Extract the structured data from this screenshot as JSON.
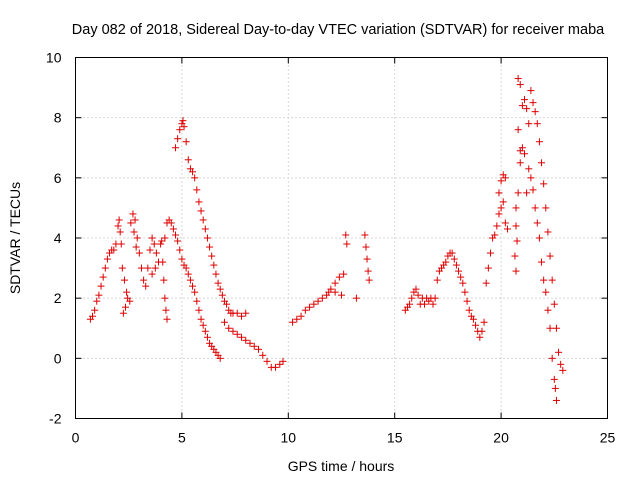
{
  "chart_data": {
    "type": "scatter",
    "title": "Day 082 of 2018, Sidereal Day-to-day VTEC variation (SDTVAR) for receiver maba",
    "xlabel": "GPS time / hours",
    "ylabel": "SDTVAR / TECUs",
    "xlim": [
      0,
      25
    ],
    "ylim": [
      -2,
      10
    ],
    "xticks": [
      "0",
      "5",
      "10",
      "15",
      "20",
      "25"
    ],
    "yticks": [
      "-2",
      "0",
      "2",
      "4",
      "6",
      "8",
      "10"
    ],
    "grid": true,
    "marker": "+",
    "series": [
      {
        "name": "SDTVAR",
        "color": "#dd0000",
        "points": [
          [
            0.7,
            1.3
          ],
          [
            0.8,
            1.4
          ],
          [
            0.9,
            1.6
          ],
          [
            1.0,
            1.9
          ],
          [
            1.1,
            2.1
          ],
          [
            1.2,
            2.4
          ],
          [
            1.3,
            2.7
          ],
          [
            1.4,
            3.0
          ],
          [
            1.5,
            3.3
          ],
          [
            1.6,
            3.5
          ],
          [
            1.7,
            3.6
          ],
          [
            1.8,
            3.6
          ],
          [
            1.9,
            3.8
          ],
          [
            2.0,
            4.4
          ],
          [
            2.05,
            4.6
          ],
          [
            2.1,
            4.2
          ],
          [
            2.15,
            3.8
          ],
          [
            2.2,
            3.0
          ],
          [
            2.3,
            2.6
          ],
          [
            2.4,
            2.2
          ],
          [
            2.25,
            1.5
          ],
          [
            2.35,
            1.7
          ],
          [
            2.45,
            2.0
          ],
          [
            2.55,
            1.9
          ],
          [
            2.6,
            4.5
          ],
          [
            2.7,
            4.8
          ],
          [
            2.8,
            4.6
          ],
          [
            2.9,
            4.0
          ],
          [
            3.0,
            3.5
          ],
          [
            3.1,
            3.0
          ],
          [
            3.2,
            2.6
          ],
          [
            3.3,
            2.4
          ],
          [
            2.75,
            4.2
          ],
          [
            2.85,
            3.7
          ],
          [
            3.4,
            3.0
          ],
          [
            3.5,
            3.6
          ],
          [
            3.6,
            4.0
          ],
          [
            3.7,
            3.8
          ],
          [
            3.8,
            3.5
          ],
          [
            3.9,
            3.2
          ],
          [
            4.0,
            3.8
          ],
          [
            4.05,
            3.9
          ],
          [
            4.1,
            3.2
          ],
          [
            4.15,
            2.6
          ],
          [
            4.2,
            2.0
          ],
          [
            4.25,
            1.6
          ],
          [
            4.3,
            1.3
          ],
          [
            3.6,
            2.8
          ],
          [
            3.75,
            3.0
          ],
          [
            4.2,
            4.0
          ],
          [
            4.3,
            4.5
          ],
          [
            4.4,
            4.6
          ],
          [
            4.5,
            4.5
          ],
          [
            4.6,
            4.3
          ],
          [
            4.7,
            4.1
          ],
          [
            4.8,
            3.9
          ],
          [
            4.9,
            3.6
          ],
          [
            5.0,
            3.3
          ],
          [
            5.1,
            3.1
          ],
          [
            5.2,
            3.0
          ],
          [
            5.3,
            2.8
          ],
          [
            5.4,
            2.6
          ],
          [
            5.5,
            2.4
          ],
          [
            5.6,
            2.2
          ],
          [
            5.7,
            1.9
          ],
          [
            5.8,
            1.6
          ],
          [
            5.9,
            1.3
          ],
          [
            6.0,
            1.1
          ],
          [
            6.1,
            0.9
          ],
          [
            6.2,
            0.7
          ],
          [
            6.3,
            0.5
          ],
          [
            6.4,
            0.4
          ],
          [
            6.5,
            0.3
          ],
          [
            6.6,
            0.2
          ],
          [
            6.7,
            0.1
          ],
          [
            6.8,
            0.0
          ],
          [
            4.7,
            7.0
          ],
          [
            4.8,
            7.3
          ],
          [
            4.9,
            7.6
          ],
          [
            5.0,
            7.8
          ],
          [
            5.05,
            7.9
          ],
          [
            5.1,
            7.7
          ],
          [
            5.2,
            7.2
          ],
          [
            5.3,
            6.6
          ],
          [
            5.4,
            6.3
          ],
          [
            5.5,
            6.2
          ],
          [
            5.6,
            6.0
          ],
          [
            5.7,
            5.6
          ],
          [
            5.8,
            5.2
          ],
          [
            5.9,
            4.9
          ],
          [
            6.0,
            4.6
          ],
          [
            6.1,
            4.3
          ],
          [
            6.2,
            4.0
          ],
          [
            6.3,
            3.7
          ],
          [
            6.4,
            3.4
          ],
          [
            6.5,
            3.1
          ],
          [
            6.6,
            2.8
          ],
          [
            6.7,
            2.5
          ],
          [
            6.8,
            2.3
          ],
          [
            6.9,
            2.1
          ],
          [
            7.0,
            1.9
          ],
          [
            7.1,
            1.8
          ],
          [
            7.2,
            1.6
          ],
          [
            7.3,
            1.5
          ],
          [
            7.4,
            1.5
          ],
          [
            7.0,
            1.2
          ],
          [
            7.2,
            1.0
          ],
          [
            7.4,
            0.9
          ],
          [
            7.6,
            0.8
          ],
          [
            7.8,
            0.7
          ],
          [
            8.0,
            0.6
          ],
          [
            8.2,
            0.5
          ],
          [
            8.4,
            0.4
          ],
          [
            8.6,
            0.3
          ],
          [
            8.8,
            0.1
          ],
          [
            9.0,
            -0.1
          ],
          [
            9.2,
            -0.3
          ],
          [
            9.4,
            -0.3
          ],
          [
            9.6,
            -0.2
          ],
          [
            9.75,
            -0.1
          ],
          [
            7.6,
            1.5
          ],
          [
            7.8,
            1.4
          ],
          [
            8.0,
            1.5
          ],
          [
            10.2,
            1.2
          ],
          [
            10.4,
            1.3
          ],
          [
            10.6,
            1.4
          ],
          [
            10.8,
            1.6
          ],
          [
            11.0,
            1.7
          ],
          [
            11.2,
            1.8
          ],
          [
            11.4,
            1.9
          ],
          [
            11.6,
            2.0
          ],
          [
            11.8,
            2.1
          ],
          [
            12.0,
            2.3
          ],
          [
            12.2,
            2.5
          ],
          [
            12.4,
            2.7
          ],
          [
            12.6,
            2.8
          ],
          [
            11.9,
            2.2
          ],
          [
            12.2,
            2.2
          ],
          [
            12.5,
            2.1
          ],
          [
            12.7,
            4.1
          ],
          [
            12.75,
            3.8
          ],
          [
            13.2,
            2.0
          ],
          [
            13.6,
            4.1
          ],
          [
            13.65,
            3.7
          ],
          [
            13.7,
            3.3
          ],
          [
            13.75,
            2.9
          ],
          [
            13.8,
            2.6
          ],
          [
            15.5,
            1.6
          ],
          [
            15.6,
            1.7
          ],
          [
            15.7,
            1.8
          ],
          [
            15.8,
            2.0
          ],
          [
            15.9,
            2.2
          ],
          [
            16.0,
            2.3
          ],
          [
            16.1,
            2.1
          ],
          [
            16.2,
            1.8
          ],
          [
            16.3,
            2.0
          ],
          [
            16.4,
            1.8
          ],
          [
            16.5,
            2.0
          ],
          [
            16.6,
            1.9
          ],
          [
            16.7,
            2.0
          ],
          [
            16.8,
            1.8
          ],
          [
            16.9,
            2.0
          ],
          [
            17.0,
            2.6
          ],
          [
            17.1,
            2.9
          ],
          [
            17.2,
            3.0
          ],
          [
            17.3,
            3.1
          ],
          [
            17.4,
            3.2
          ],
          [
            17.5,
            3.4
          ],
          [
            17.6,
            3.5
          ],
          [
            17.7,
            3.5
          ],
          [
            17.8,
            3.3
          ],
          [
            17.9,
            3.1
          ],
          [
            18.0,
            2.9
          ],
          [
            18.1,
            2.7
          ],
          [
            18.2,
            2.5
          ],
          [
            18.3,
            2.2
          ],
          [
            18.4,
            1.9
          ],
          [
            18.5,
            1.6
          ],
          [
            18.6,
            1.4
          ],
          [
            18.7,
            1.3
          ],
          [
            18.8,
            1.1
          ],
          [
            18.9,
            0.9
          ],
          [
            19.0,
            0.7
          ],
          [
            19.1,
            0.9
          ],
          [
            19.2,
            1.2
          ],
          [
            19.3,
            2.5
          ],
          [
            19.4,
            3.0
          ],
          [
            19.5,
            3.5
          ],
          [
            19.6,
            4.0
          ],
          [
            19.7,
            4.1
          ],
          [
            19.8,
            4.4
          ],
          [
            19.9,
            4.8
          ],
          [
            20.0,
            5.0
          ],
          [
            20.1,
            5.2
          ],
          [
            20.2,
            4.5
          ],
          [
            20.3,
            4.3
          ],
          [
            19.9,
            5.5
          ],
          [
            20.0,
            5.9
          ],
          [
            20.1,
            6.1
          ],
          [
            20.2,
            6.0
          ],
          [
            20.8,
            9.3
          ],
          [
            20.9,
            9.1
          ],
          [
            21.0,
            8.4
          ],
          [
            21.1,
            8.6
          ],
          [
            21.2,
            8.3
          ],
          [
            21.3,
            7.8
          ],
          [
            21.4,
            8.9
          ],
          [
            21.5,
            8.5
          ],
          [
            21.6,
            8.2
          ],
          [
            21.7,
            7.8
          ],
          [
            21.8,
            7.2
          ],
          [
            21.9,
            6.5
          ],
          [
            22.0,
            5.8
          ],
          [
            22.1,
            5.0
          ],
          [
            22.2,
            4.2
          ],
          [
            22.3,
            3.4
          ],
          [
            22.4,
            2.6
          ],
          [
            22.5,
            1.8
          ],
          [
            22.6,
            1.0
          ],
          [
            22.7,
            0.2
          ],
          [
            22.8,
            -0.2
          ],
          [
            22.9,
            -0.4
          ],
          [
            20.7,
            5.0
          ],
          [
            20.8,
            5.5
          ],
          [
            20.9,
            6.5
          ],
          [
            21.0,
            7.0
          ],
          [
            21.1,
            6.8
          ],
          [
            21.2,
            5.5
          ],
          [
            21.3,
            6.3
          ],
          [
            21.4,
            6.0
          ],
          [
            21.5,
            5.6
          ],
          [
            21.6,
            5.0
          ],
          [
            21.7,
            4.5
          ],
          [
            21.8,
            4.0
          ],
          [
            21.9,
            3.2
          ],
          [
            22.0,
            2.6
          ],
          [
            22.1,
            2.2
          ],
          [
            22.2,
            1.6
          ],
          [
            22.3,
            1.0
          ],
          [
            22.4,
            0.0
          ],
          [
            22.5,
            -0.7
          ],
          [
            22.55,
            -1.0
          ],
          [
            22.6,
            -1.4
          ],
          [
            20.7,
            4.4
          ],
          [
            20.75,
            3.9
          ],
          [
            20.65,
            3.4
          ],
          [
            20.7,
            2.9
          ],
          [
            20.8,
            7.6
          ],
          [
            20.9,
            6.9
          ]
        ]
      }
    ]
  }
}
